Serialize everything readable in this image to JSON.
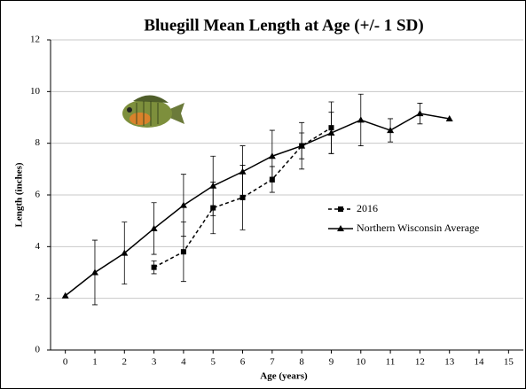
{
  "chart_data": {
    "type": "line",
    "title": "Bluegill Mean Length  at Age (+/- 1 SD)",
    "x_label": "Age (years)",
    "y_label": "Length (inches)",
    "x": [
      0,
      1,
      2,
      3,
      4,
      5,
      6,
      7,
      8,
      9,
      10,
      11,
      12,
      13
    ],
    "series": [
      {
        "name": "2016",
        "color": "#000000",
        "line_style": "dashed",
        "marker": "square",
        "values": [
          null,
          null,
          null,
          3.2,
          3.8,
          5.5,
          5.9,
          6.6,
          7.9,
          8.6,
          null,
          null,
          null,
          null
        ],
        "errors": [
          null,
          null,
          null,
          0.25,
          1.15,
          1.0,
          1.25,
          0.5,
          0.5,
          1.0,
          null,
          null,
          null,
          null
        ]
      },
      {
        "name": "Northern Wisconsin Average",
        "color": "#000000",
        "line_style": "solid",
        "marker": "triangle",
        "values": [
          2.1,
          3.0,
          3.75,
          4.7,
          5.6,
          6.35,
          6.9,
          7.5,
          7.9,
          8.4,
          8.9,
          8.5,
          9.15,
          8.95
        ],
        "errors": [
          null,
          1.25,
          1.2,
          1.0,
          1.2,
          1.15,
          1.0,
          1.0,
          0.9,
          0.8,
          1.0,
          0.45,
          0.4,
          null
        ]
      }
    ],
    "xlim": [
      -0.5,
      15.5
    ],
    "xticks": [
      0,
      1,
      2,
      3,
      4,
      5,
      6,
      7,
      8,
      9,
      10,
      11,
      12,
      13,
      14,
      15
    ],
    "ylim": [
      0,
      12
    ],
    "yticks": [
      0,
      2,
      4,
      6,
      8,
      10,
      12
    ],
    "grid": true,
    "legend": "center-right"
  }
}
